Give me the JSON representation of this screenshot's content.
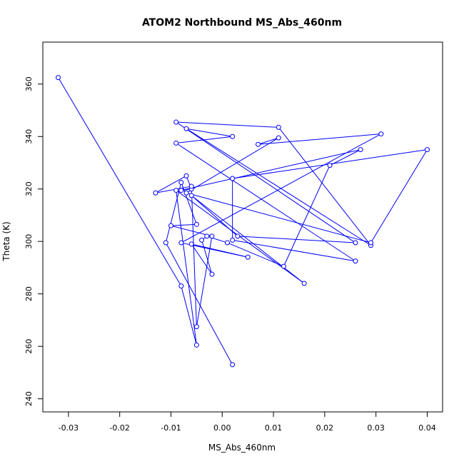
{
  "chart_data": {
    "type": "line",
    "title": "ATOM2 Northbound MS_Abs_460nm",
    "xlabel": "MS_Abs_460nm",
    "ylabel": "Theta (K)",
    "xlim": [
      -0.035,
      0.043
    ],
    "ylim": [
      235,
      376
    ],
    "xticks": [
      -0.03,
      -0.02,
      -0.01,
      0.0,
      0.01,
      0.02,
      0.03,
      0.04
    ],
    "xtick_labels": [
      "-0.03",
      "-0.02",
      "-0.01",
      "0.00",
      "0.01",
      "0.02",
      "0.03",
      "0.04"
    ],
    "yticks": [
      240,
      260,
      280,
      300,
      320,
      340,
      360
    ],
    "ytick_labels": [
      "240",
      "260",
      "280",
      "300",
      "320",
      "340",
      "360"
    ],
    "grid": false,
    "legend": "none",
    "markers": "open-circle",
    "color": "#0000ff",
    "series": [
      {
        "x": [
          -0.032,
          -0.008,
          -0.005,
          -0.009,
          0.016,
          -0.006,
          0.003,
          0.026,
          -0.009,
          0.011,
          0.029,
          -0.007,
          0.002,
          -0.009,
          0.026,
          0.002,
          0.002,
          0.04,
          0.029,
          -0.007,
          0.011,
          0.007,
          0.031,
          -0.008,
          0.005,
          -0.006,
          -0.002,
          -0.004,
          -0.003,
          0.001,
          0.012,
          0.021,
          0.027,
          -0.008,
          -0.006,
          -0.007,
          -0.013,
          -0.006,
          -0.005,
          -0.002,
          -0.01,
          -0.005,
          -0.008,
          -0.011,
          0.002
        ],
        "y": [
          362.5,
          283,
          260.5,
          319.5,
          284,
          317.5,
          302,
          299.5,
          345.5,
          343.5,
          298.5,
          343,
          340,
          337.5,
          292.5,
          300.5,
          324,
          335,
          299.5,
          318.5,
          339.5,
          337,
          341,
          299.5,
          294,
          299,
          287.5,
          300.5,
          302,
          299.5,
          290.5,
          329,
          335,
          319.5,
          320,
          325,
          318.5,
          321,
          267.5,
          302,
          306,
          306.5,
          322.5,
          299.5,
          253
        ]
      }
    ]
  }
}
